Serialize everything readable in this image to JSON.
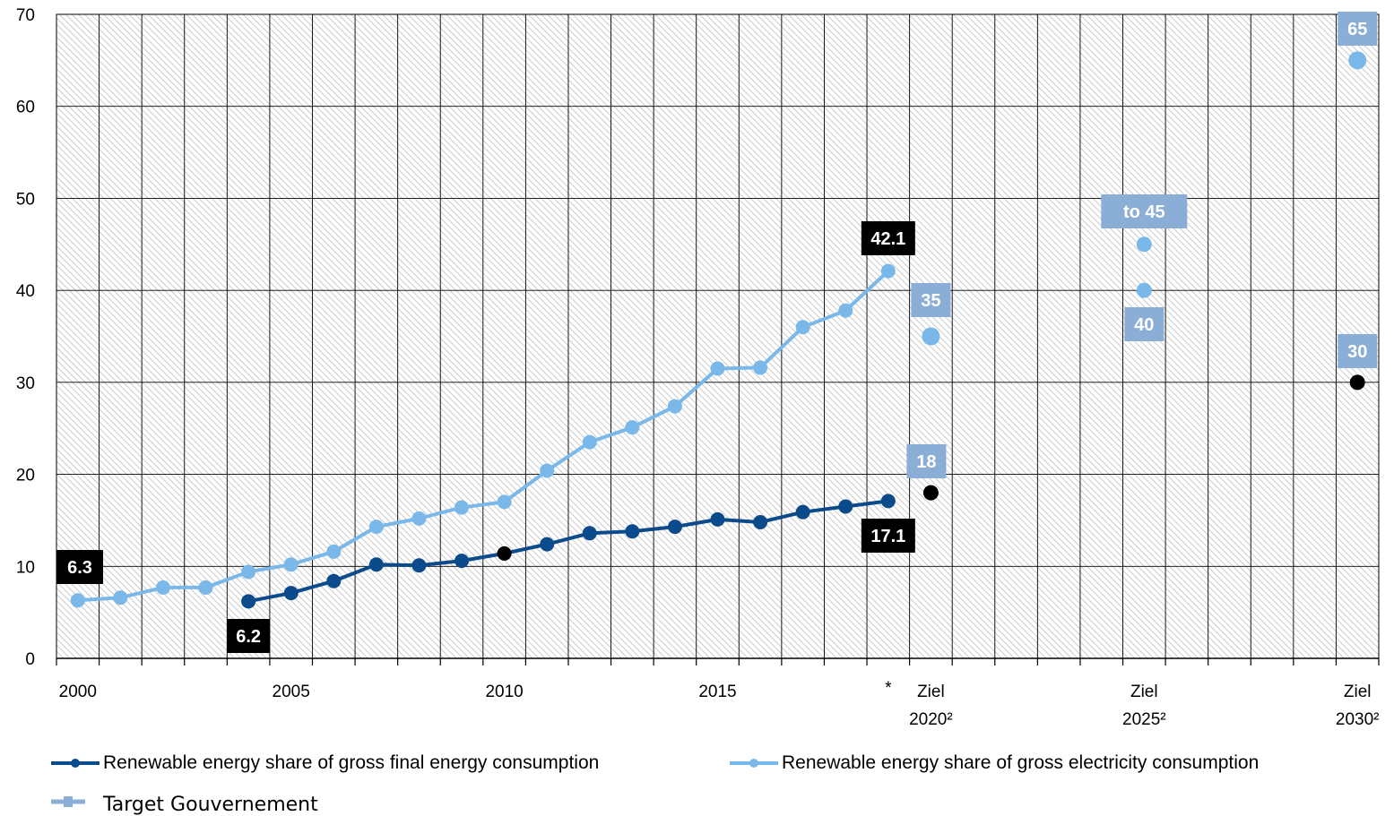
{
  "chart_data": {
    "type": "line",
    "title": "",
    "xlabel": "",
    "ylabel": "",
    "ylim": [
      0,
      70
    ],
    "yticks": [
      "0",
      "10",
      "20",
      "30",
      "40",
      "50",
      "60",
      "70"
    ],
    "grid": true,
    "legend_position": "bottom",
    "colors": {
      "final_energy": "#0b4a8b",
      "electricity": "#7ab8ea",
      "target": "#8aaed6",
      "target_marker": "#000000",
      "plot_hatch": "#bdbdbd",
      "label_black": "#000000"
    },
    "x_tick_labels": [
      {
        "slot": 0,
        "lines": [
          "2000"
        ]
      },
      {
        "slot": 5,
        "lines": [
          "2005"
        ]
      },
      {
        "slot": 10,
        "lines": [
          "2010"
        ]
      },
      {
        "slot": 15,
        "lines": [
          "2015"
        ]
      },
      {
        "slot": 19,
        "lines": [
          "*"
        ]
      },
      {
        "slot": 20,
        "lines": [
          "Ziel",
          "2020²"
        ]
      },
      {
        "slot": 25,
        "lines": [
          "Ziel",
          "2025²"
        ]
      },
      {
        "slot": 30,
        "lines": [
          "Ziel",
          "2030²"
        ]
      }
    ],
    "series": [
      {
        "name": "Renewable energy share of gross final energy consumption",
        "color": "#0b4a8b",
        "x": [
          "2004",
          "2005",
          "2006",
          "2007",
          "2008",
          "2009",
          "2010",
          "2011",
          "2012",
          "2013",
          "2014",
          "2015",
          "2016",
          "2017",
          "2018",
          "2019"
        ],
        "values": [
          6.2,
          7.1,
          8.4,
          10.2,
          10.1,
          10.6,
          11.4,
          12.4,
          13.6,
          13.8,
          14.3,
          15.1,
          14.8,
          15.9,
          16.5,
          17.1
        ],
        "highlight_points": [
          "2010"
        ]
      },
      {
        "name": "Renewable energy share of gross electricity consumption",
        "color": "#7ab8ea",
        "x": [
          "2000",
          "2001",
          "2002",
          "2003",
          "2004",
          "2005",
          "2006",
          "2007",
          "2008",
          "2009",
          "2010",
          "2011",
          "2012",
          "2013",
          "2014",
          "2015",
          "2016",
          "2017",
          "2018",
          "2019"
        ],
        "values": [
          6.3,
          6.6,
          7.7,
          7.7,
          9.4,
          10.2,
          11.6,
          14.3,
          15.2,
          16.4,
          17.0,
          20.4,
          23.5,
          25.1,
          27.4,
          31.5,
          31.6,
          36.0,
          37.8,
          42.1
        ]
      }
    ],
    "targets": [
      {
        "x": "Ziel 2020²",
        "value": 35,
        "kind": "electricity"
      },
      {
        "x": "Ziel 2020²",
        "value": 18,
        "kind": "final"
      },
      {
        "x": "Ziel 2025²",
        "value": 40,
        "kind": "electricity"
      },
      {
        "x": "Ziel 2025²",
        "value": 45,
        "kind": "electricity"
      },
      {
        "x": "Ziel 2030²",
        "value": 65,
        "kind": "electricity"
      },
      {
        "x": "Ziel 2030²",
        "value": 30,
        "kind": "final"
      }
    ],
    "data_labels": [
      {
        "text": "6.3",
        "style": "black",
        "anchor": "electricity 2000",
        "value": 6.3
      },
      {
        "text": "6.2",
        "style": "black",
        "anchor": "final 2004",
        "value": 6.2
      },
      {
        "text": "42.1",
        "style": "black",
        "anchor": "electricity 2019",
        "value": 42.1
      },
      {
        "text": "17.1",
        "style": "black",
        "anchor": "final 2019",
        "value": 17.1
      },
      {
        "text": "35",
        "style": "blue",
        "anchor": "target 2020 electricity",
        "value": 35
      },
      {
        "text": "18",
        "style": "blue",
        "anchor": "target 2020 final",
        "value": 18
      },
      {
        "text": "to 45",
        "style": "blue",
        "anchor": "target 2025 upper",
        "value": 45
      },
      {
        "text": "40",
        "style": "blue",
        "anchor": "target 2025 lower",
        "value": 40
      },
      {
        "text": "30",
        "style": "blue",
        "anchor": "target 2030 final",
        "value": 30
      },
      {
        "text": "65",
        "style": "blue",
        "anchor": "target 2030 electricity",
        "value": 65
      }
    ]
  },
  "legend": {
    "final_energy_label": "Renewable energy share of gross final energy consumption",
    "electricity_label": "Renewable energy share of gross electricity consumption",
    "target_label": "Target Gouvernement"
  }
}
